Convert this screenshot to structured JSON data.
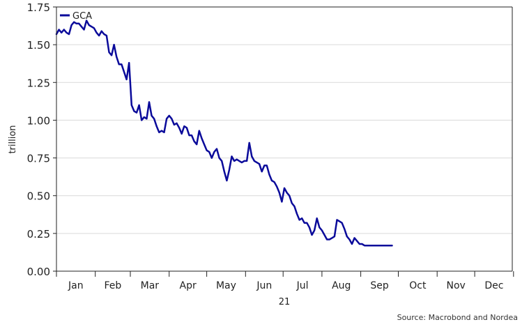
{
  "chart_data": {
    "type": "line",
    "title": "",
    "ylabel": "trillion",
    "year_label": "21",
    "ylim": [
      0,
      1.75
    ],
    "yticks": [
      0.0,
      0.25,
      0.5,
      0.75,
      1.0,
      1.25,
      1.5,
      1.75
    ],
    "ytick_labels": [
      "0.00",
      "0.25",
      "0.50",
      "0.75",
      "1.00",
      "1.25",
      "1.50",
      "1.75"
    ],
    "xlim": [
      "2021-01-01",
      "2021-12-31"
    ],
    "x_tick_labels": [
      "Jan",
      "Feb",
      "Mar",
      "Apr",
      "May",
      "Jun",
      "Jul",
      "Aug",
      "Sep",
      "Oct",
      "Nov",
      "Dec"
    ],
    "grid": "horizontal",
    "legend_position": "top-left",
    "colors": {
      "series": "#0a0a9a",
      "grid": "#d9d9d9",
      "axis": "#222222"
    },
    "series": [
      {
        "name": "GCA",
        "x": [
          "2021-01-01",
          "2021-01-03",
          "2021-01-05",
          "2021-01-07",
          "2021-01-09",
          "2021-01-11",
          "2021-01-13",
          "2021-01-15",
          "2021-01-17",
          "2021-01-19",
          "2021-01-21",
          "2021-01-23",
          "2021-01-25",
          "2021-01-27",
          "2021-01-29",
          "2021-01-31",
          "2021-02-02",
          "2021-02-04",
          "2021-02-06",
          "2021-02-08",
          "2021-02-10",
          "2021-02-12",
          "2021-02-14",
          "2021-02-16",
          "2021-02-18",
          "2021-02-20",
          "2021-02-22",
          "2021-02-24",
          "2021-02-26",
          "2021-02-28",
          "2021-03-02",
          "2021-03-04",
          "2021-03-06",
          "2021-03-08",
          "2021-03-10",
          "2021-03-12",
          "2021-03-14",
          "2021-03-16",
          "2021-03-18",
          "2021-03-20",
          "2021-03-22",
          "2021-03-24",
          "2021-03-26",
          "2021-03-28",
          "2021-03-30",
          "2021-04-01",
          "2021-04-03",
          "2021-04-05",
          "2021-04-07",
          "2021-04-09",
          "2021-04-11",
          "2021-04-13",
          "2021-04-15",
          "2021-04-17",
          "2021-04-19",
          "2021-04-21",
          "2021-04-23",
          "2021-04-25",
          "2021-04-27",
          "2021-04-29",
          "2021-05-01",
          "2021-05-03",
          "2021-05-05",
          "2021-05-07",
          "2021-05-09",
          "2021-05-11",
          "2021-05-13",
          "2021-05-15",
          "2021-05-17",
          "2021-05-19",
          "2021-05-21",
          "2021-05-23",
          "2021-05-25",
          "2021-05-27",
          "2021-05-29",
          "2021-05-31",
          "2021-06-02",
          "2021-06-04",
          "2021-06-06",
          "2021-06-08",
          "2021-06-10",
          "2021-06-12",
          "2021-06-14",
          "2021-06-16",
          "2021-06-18",
          "2021-06-20",
          "2021-06-22",
          "2021-06-24",
          "2021-06-26",
          "2021-06-28",
          "2021-06-30",
          "2021-07-02",
          "2021-07-04",
          "2021-07-06",
          "2021-07-08",
          "2021-07-10",
          "2021-07-12",
          "2021-07-14",
          "2021-07-16",
          "2021-07-18",
          "2021-07-20",
          "2021-07-22",
          "2021-07-24",
          "2021-07-26",
          "2021-07-28",
          "2021-07-30",
          "2021-08-01",
          "2021-08-03",
          "2021-08-05",
          "2021-08-07",
          "2021-08-09",
          "2021-08-11",
          "2021-08-13",
          "2021-08-15",
          "2021-08-17",
          "2021-08-19",
          "2021-08-21",
          "2021-08-23",
          "2021-08-25",
          "2021-08-27",
          "2021-08-29",
          "2021-08-31",
          "2021-09-02",
          "2021-09-04",
          "2021-09-06",
          "2021-09-08",
          "2021-09-10",
          "2021-09-12",
          "2021-09-14",
          "2021-09-16",
          "2021-09-18",
          "2021-09-20",
          "2021-09-22",
          "2021-09-24",
          "2021-09-26"
        ],
        "values": [
          1.57,
          1.6,
          1.58,
          1.6,
          1.58,
          1.57,
          1.63,
          1.65,
          1.64,
          1.64,
          1.62,
          1.6,
          1.66,
          1.63,
          1.62,
          1.61,
          1.58,
          1.56,
          1.59,
          1.57,
          1.56,
          1.45,
          1.43,
          1.5,
          1.42,
          1.37,
          1.37,
          1.32,
          1.27,
          1.38,
          1.1,
          1.06,
          1.05,
          1.1,
          1.0,
          1.02,
          1.01,
          1.12,
          1.03,
          1.01,
          0.96,
          0.92,
          0.93,
          0.92,
          1.01,
          1.03,
          1.01,
          0.97,
          0.98,
          0.95,
          0.91,
          0.96,
          0.95,
          0.9,
          0.9,
          0.86,
          0.84,
          0.93,
          0.88,
          0.84,
          0.8,
          0.79,
          0.75,
          0.79,
          0.81,
          0.75,
          0.73,
          0.66,
          0.6,
          0.67,
          0.76,
          0.73,
          0.74,
          0.73,
          0.72,
          0.73,
          0.73,
          0.85,
          0.76,
          0.73,
          0.72,
          0.71,
          0.66,
          0.7,
          0.7,
          0.64,
          0.6,
          0.59,
          0.56,
          0.52,
          0.46,
          0.55,
          0.52,
          0.5,
          0.45,
          0.43,
          0.38,
          0.34,
          0.35,
          0.32,
          0.32,
          0.29,
          0.24,
          0.27,
          0.35,
          0.29,
          0.27,
          0.24,
          0.21,
          0.21,
          0.22,
          0.23,
          0.34,
          0.33,
          0.32,
          0.28,
          0.23,
          0.21,
          0.18,
          0.22,
          0.2,
          0.18,
          0.18,
          0.17,
          0.17,
          0.17,
          0.17,
          0.17,
          0.17,
          0.17,
          0.17,
          0.17,
          0.17,
          0.17,
          0.17
        ]
      }
    ]
  },
  "source": "Source: Macrobond and Nordea"
}
